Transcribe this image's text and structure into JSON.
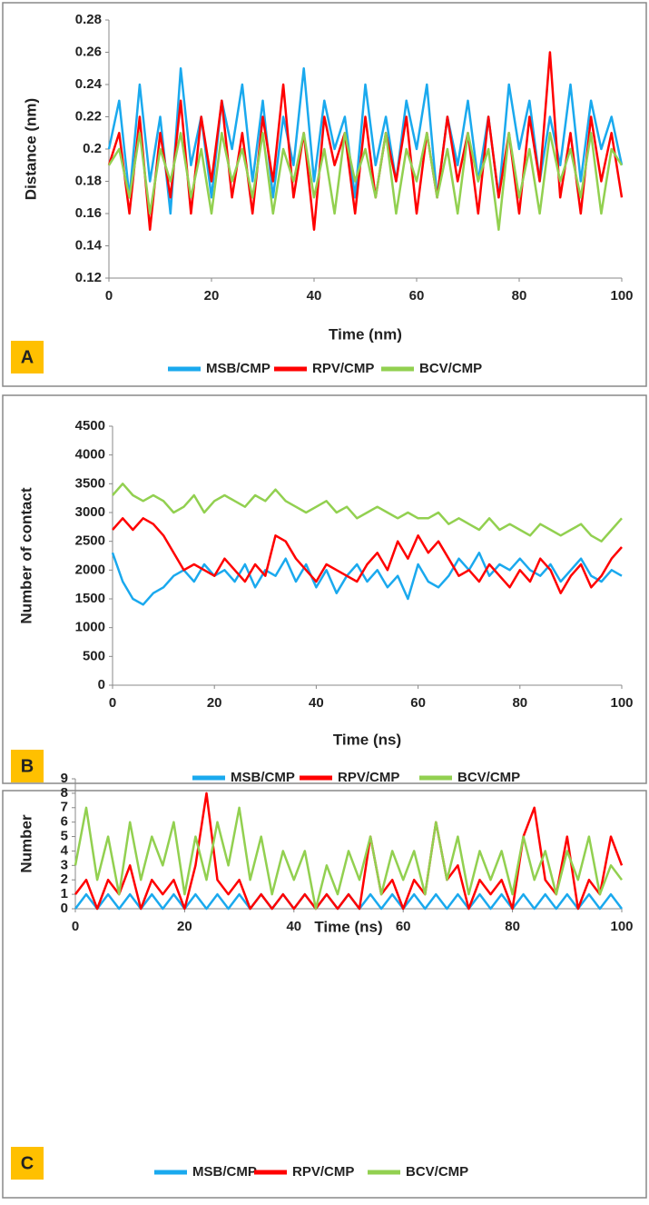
{
  "chart_data": [
    {
      "type": "line",
      "panel_label": "A",
      "x_label": "Time (nm)",
      "y_label": "Distance (nm)",
      "x": [
        0,
        2,
        4,
        6,
        8,
        10,
        12,
        14,
        16,
        18,
        20,
        22,
        24,
        26,
        28,
        30,
        32,
        34,
        36,
        38,
        40,
        42,
        44,
        46,
        48,
        50,
        52,
        54,
        56,
        58,
        60,
        62,
        64,
        66,
        68,
        70,
        72,
        74,
        76,
        78,
        80,
        82,
        84,
        86,
        88,
        90,
        92,
        94,
        96,
        98,
        100
      ],
      "xlim": [
        0,
        100
      ],
      "xticks": [
        0,
        20,
        40,
        60,
        80,
        100
      ],
      "ylim": [
        0.12,
        0.28
      ],
      "yticks": [
        0.12,
        0.14,
        0.16,
        0.18,
        0.2,
        0.22,
        0.24,
        0.26,
        0.28
      ],
      "series": [
        {
          "name": "MSB/CMP",
          "color": "#1aa9ee",
          "values": [
            0.2,
            0.23,
            0.17,
            0.24,
            0.18,
            0.22,
            0.16,
            0.25,
            0.19,
            0.22,
            0.17,
            0.23,
            0.2,
            0.24,
            0.18,
            0.23,
            0.17,
            0.22,
            0.19,
            0.25,
            0.18,
            0.23,
            0.2,
            0.22,
            0.17,
            0.24,
            0.19,
            0.22,
            0.18,
            0.23,
            0.2,
            0.24,
            0.17,
            0.22,
            0.19,
            0.23,
            0.18,
            0.22,
            0.17,
            0.24,
            0.2,
            0.23,
            0.18,
            0.22,
            0.19,
            0.24,
            0.18,
            0.23,
            0.2,
            0.22,
            0.19
          ]
        },
        {
          "name": "RPV/CMP",
          "color": "#ff0000",
          "values": [
            0.19,
            0.21,
            0.16,
            0.22,
            0.15,
            0.21,
            0.17,
            0.23,
            0.16,
            0.22,
            0.18,
            0.23,
            0.17,
            0.21,
            0.16,
            0.22,
            0.18,
            0.24,
            0.17,
            0.21,
            0.15,
            0.22,
            0.19,
            0.21,
            0.16,
            0.22,
            0.17,
            0.21,
            0.18,
            0.22,
            0.16,
            0.21,
            0.17,
            0.22,
            0.18,
            0.21,
            0.16,
            0.22,
            0.17,
            0.21,
            0.16,
            0.22,
            0.18,
            0.26,
            0.17,
            0.21,
            0.16,
            0.22,
            0.18,
            0.21,
            0.17
          ]
        },
        {
          "name": "BCV/CMP",
          "color": "#92d050",
          "values": [
            0.19,
            0.2,
            0.17,
            0.21,
            0.16,
            0.2,
            0.18,
            0.21,
            0.17,
            0.2,
            0.16,
            0.21,
            0.18,
            0.2,
            0.17,
            0.21,
            0.16,
            0.2,
            0.18,
            0.21,
            0.17,
            0.2,
            0.16,
            0.21,
            0.18,
            0.2,
            0.17,
            0.21,
            0.16,
            0.2,
            0.18,
            0.21,
            0.17,
            0.2,
            0.16,
            0.21,
            0.18,
            0.2,
            0.15,
            0.21,
            0.17,
            0.2,
            0.16,
            0.21,
            0.18,
            0.2,
            0.17,
            0.21,
            0.16,
            0.2,
            0.19
          ]
        }
      ]
    },
    {
      "type": "line",
      "panel_label": "B",
      "x_label": "Time (ns)",
      "y_label": "Number of contact",
      "x": [
        0,
        2,
        4,
        6,
        8,
        10,
        12,
        14,
        16,
        18,
        20,
        22,
        24,
        26,
        28,
        30,
        32,
        34,
        36,
        38,
        40,
        42,
        44,
        46,
        48,
        50,
        52,
        54,
        56,
        58,
        60,
        62,
        64,
        66,
        68,
        70,
        72,
        74,
        76,
        78,
        80,
        82,
        84,
        86,
        88,
        90,
        92,
        94,
        96,
        98,
        100
      ],
      "xlim": [
        0,
        100
      ],
      "xticks": [
        0,
        20,
        40,
        60,
        80,
        100
      ],
      "ylim": [
        0,
        4500
      ],
      "yticks": [
        0,
        500,
        1000,
        1500,
        2000,
        2500,
        3000,
        3500,
        4000,
        4500
      ],
      "series": [
        {
          "name": "MSB/CMP",
          "color": "#1aa9ee",
          "values": [
            2300,
            1800,
            1500,
            1400,
            1600,
            1700,
            1900,
            2000,
            1800,
            2100,
            1900,
            2000,
            1800,
            2100,
            1700,
            2000,
            1900,
            2200,
            1800,
            2100,
            1700,
            2000,
            1600,
            1900,
            2100,
            1800,
            2000,
            1700,
            1900,
            1500,
            2100,
            1800,
            1700,
            1900,
            2200,
            2000,
            2300,
            1900,
            2100,
            2000,
            2200,
            2000,
            1900,
            2100,
            1800,
            2000,
            2200,
            1900,
            1800,
            2000,
            1900
          ]
        },
        {
          "name": "RPV/CMP",
          "color": "#ff0000",
          "values": [
            2700,
            2900,
            2700,
            2900,
            2800,
            2600,
            2300,
            2000,
            2100,
            2000,
            1900,
            2200,
            2000,
            1800,
            2100,
            1900,
            2600,
            2500,
            2200,
            2000,
            1800,
            2100,
            2000,
            1900,
            1800,
            2100,
            2300,
            2000,
            2500,
            2200,
            2600,
            2300,
            2500,
            2200,
            1900,
            2000,
            1800,
            2100,
            1900,
            1700,
            2000,
            1800,
            2200,
            2000,
            1600,
            1900,
            2100,
            1700,
            1900,
            2200,
            2400
          ]
        },
        {
          "name": "BCV/CMP",
          "color": "#92d050",
          "values": [
            3300,
            3500,
            3300,
            3200,
            3300,
            3200,
            3000,
            3100,
            3300,
            3000,
            3200,
            3300,
            3200,
            3100,
            3300,
            3200,
            3400,
            3200,
            3100,
            3000,
            3100,
            3200,
            3000,
            3100,
            2900,
            3000,
            3100,
            3000,
            2900,
            3000,
            2900,
            2900,
            3000,
            2800,
            2900,
            2800,
            2700,
            2900,
            2700,
            2800,
            2700,
            2600,
            2800,
            2700,
            2600,
            2700,
            2800,
            2600,
            2500,
            2700,
            2900
          ]
        }
      ]
    },
    {
      "type": "line",
      "panel_label": "C",
      "x_label": "Time (ns)",
      "y_label": "Number",
      "x": [
        0,
        2,
        4,
        6,
        8,
        10,
        12,
        14,
        16,
        18,
        20,
        22,
        24,
        26,
        28,
        30,
        32,
        34,
        36,
        38,
        40,
        42,
        44,
        46,
        48,
        50,
        52,
        54,
        56,
        58,
        60,
        62,
        64,
        66,
        68,
        70,
        72,
        74,
        76,
        78,
        80,
        82,
        84,
        86,
        88,
        90,
        92,
        94,
        96,
        98,
        100
      ],
      "xlim": [
        0,
        100
      ],
      "xticks": [
        0,
        20,
        40,
        60,
        80,
        100
      ],
      "ylim": [
        0,
        9
      ],
      "yticks": [
        0,
        1,
        2,
        3,
        4,
        5,
        6,
        7,
        8,
        9
      ],
      "series": [
        {
          "name": "MSB/CMP",
          "color": "#1aa9ee",
          "values": [
            0,
            1,
            0,
            1,
            0,
            1,
            0,
            1,
            0,
            1,
            0,
            1,
            0,
            1,
            0,
            1,
            0,
            1,
            0,
            1,
            0,
            1,
            0,
            1,
            0,
            1,
            0,
            1,
            0,
            1,
            0,
            1,
            0,
            1,
            0,
            1,
            0,
            1,
            0,
            1,
            0,
            1,
            0,
            1,
            0,
            1,
            0,
            1,
            0,
            1,
            0
          ]
        },
        {
          "name": "RPV/CMP",
          "color": "#ff0000",
          "values": [
            1,
            2,
            0,
            2,
            1,
            3,
            0,
            2,
            1,
            2,
            0,
            3,
            8,
            2,
            1,
            2,
            0,
            1,
            0,
            1,
            0,
            1,
            0,
            1,
            0,
            1,
            0,
            5,
            1,
            2,
            0,
            2,
            1,
            6,
            2,
            3,
            0,
            2,
            1,
            2,
            0,
            5,
            7,
            2,
            1,
            5,
            0,
            2,
            1,
            5,
            3
          ]
        },
        {
          "name": "BCV/CMP",
          "color": "#92d050",
          "values": [
            3,
            7,
            2,
            5,
            1,
            6,
            2,
            5,
            3,
            6,
            1,
            5,
            2,
            6,
            3,
            7,
            2,
            5,
            1,
            4,
            2,
            4,
            0,
            3,
            1,
            4,
            2,
            5,
            1,
            4,
            2,
            4,
            1,
            6,
            2,
            5,
            1,
            4,
            2,
            4,
            1,
            5,
            2,
            4,
            1,
            4,
            2,
            5,
            1,
            3,
            2
          ]
        }
      ]
    }
  ]
}
